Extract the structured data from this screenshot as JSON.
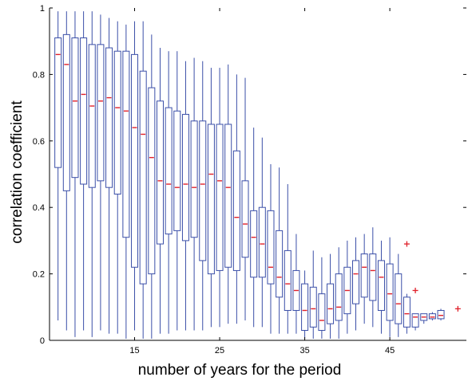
{
  "chart_data": {
    "type": "boxplot",
    "xlabel": "number of years for the period",
    "ylabel": "correlation coefficient",
    "xlim": [
      5,
      54
    ],
    "ylim": [
      0,
      1
    ],
    "x_ticks": [
      15,
      25,
      35,
      45
    ],
    "y_ticks": [
      0,
      0.2,
      0.4,
      0.6,
      0.8,
      1
    ],
    "y_tick_labels": [
      "0",
      "0.2",
      "0.4",
      "0.6",
      "0.8",
      "1"
    ],
    "grid": false,
    "colors": {
      "box": "#3b4fa8",
      "median": "#e0202a",
      "outlier": "#e0202a",
      "axis": "#000000"
    },
    "boxes": [
      {
        "x": 6,
        "whisker_low": 0.06,
        "q1": 0.52,
        "median": 0.86,
        "q3": 0.91,
        "whisker_high": 0.99
      },
      {
        "x": 7,
        "whisker_low": 0.03,
        "q1": 0.45,
        "median": 0.83,
        "q3": 0.92,
        "whisker_high": 0.99
      },
      {
        "x": 8,
        "whisker_low": 0.01,
        "q1": 0.49,
        "median": 0.72,
        "q3": 0.91,
        "whisker_high": 0.99
      },
      {
        "x": 9,
        "whisker_low": 0.03,
        "q1": 0.47,
        "median": 0.74,
        "q3": 0.91,
        "whisker_high": 0.99
      },
      {
        "x": 10,
        "whisker_low": 0.01,
        "q1": 0.46,
        "median": 0.705,
        "q3": 0.89,
        "whisker_high": 0.99
      },
      {
        "x": 11,
        "whisker_low": 0.03,
        "q1": 0.48,
        "median": 0.72,
        "q3": 0.89,
        "whisker_high": 0.98
      },
      {
        "x": 12,
        "whisker_low": 0.02,
        "q1": 0.46,
        "median": 0.73,
        "q3": 0.88,
        "whisker_high": 0.97
      },
      {
        "x": 13,
        "whisker_low": 0.02,
        "q1": 0.44,
        "median": 0.7,
        "q3": 0.87,
        "whisker_high": 0.96
      },
      {
        "x": 14,
        "whisker_low": 0.005,
        "q1": 0.31,
        "median": 0.69,
        "q3": 0.87,
        "whisker_high": 0.95
      },
      {
        "x": 15,
        "whisker_low": 0.03,
        "q1": 0.22,
        "median": 0.64,
        "q3": 0.86,
        "whisker_high": 0.96
      },
      {
        "x": 16,
        "whisker_low": 0.005,
        "q1": 0.17,
        "median": 0.62,
        "q3": 0.81,
        "whisker_high": 0.96
      },
      {
        "x": 17,
        "whisker_low": 0.005,
        "q1": 0.2,
        "median": 0.55,
        "q3": 0.76,
        "whisker_high": 0.92
      },
      {
        "x": 18,
        "whisker_low": 0.02,
        "q1": 0.29,
        "median": 0.48,
        "q3": 0.72,
        "whisker_high": 0.88
      },
      {
        "x": 19,
        "whisker_low": 0.02,
        "q1": 0.32,
        "median": 0.47,
        "q3": 0.7,
        "whisker_high": 0.87
      },
      {
        "x": 20,
        "whisker_low": 0.03,
        "q1": 0.33,
        "median": 0.46,
        "q3": 0.69,
        "whisker_high": 0.87
      },
      {
        "x": 21,
        "whisker_low": 0.03,
        "q1": 0.3,
        "median": 0.47,
        "q3": 0.68,
        "whisker_high": 0.84
      },
      {
        "x": 22,
        "whisker_low": 0.03,
        "q1": 0.31,
        "median": 0.46,
        "q3": 0.66,
        "whisker_high": 0.85
      },
      {
        "x": 23,
        "whisker_low": 0.03,
        "q1": 0.24,
        "median": 0.47,
        "q3": 0.66,
        "whisker_high": 0.84
      },
      {
        "x": 24,
        "whisker_low": 0.04,
        "q1": 0.2,
        "median": 0.5,
        "q3": 0.65,
        "whisker_high": 0.82
      },
      {
        "x": 25,
        "whisker_low": 0.04,
        "q1": 0.21,
        "median": 0.48,
        "q3": 0.65,
        "whisker_high": 0.82
      },
      {
        "x": 26,
        "whisker_low": 0.05,
        "q1": 0.22,
        "median": 0.46,
        "q3": 0.65,
        "whisker_high": 0.83
      },
      {
        "x": 27,
        "whisker_low": 0.05,
        "q1": 0.21,
        "median": 0.37,
        "q3": 0.57,
        "whisker_high": 0.8
      },
      {
        "x": 28,
        "whisker_low": 0.06,
        "q1": 0.25,
        "median": 0.35,
        "q3": 0.48,
        "whisker_high": 0.79
      },
      {
        "x": 29,
        "whisker_low": 0.04,
        "q1": 0.19,
        "median": 0.31,
        "q3": 0.39,
        "whisker_high": 0.64
      },
      {
        "x": 30,
        "whisker_low": 0.04,
        "q1": 0.19,
        "median": 0.29,
        "q3": 0.4,
        "whisker_high": 0.61
      },
      {
        "x": 31,
        "whisker_low": 0.02,
        "q1": 0.17,
        "median": 0.22,
        "q3": 0.39,
        "whisker_high": 0.53
      },
      {
        "x": 32,
        "whisker_low": 0.02,
        "q1": 0.13,
        "median": 0.19,
        "q3": 0.33,
        "whisker_high": 0.52
      },
      {
        "x": 33,
        "whisker_low": 0.02,
        "q1": 0.09,
        "median": 0.17,
        "q3": 0.27,
        "whisker_high": 0.47
      },
      {
        "x": 34,
        "whisker_low": 0.02,
        "q1": 0.09,
        "median": 0.15,
        "q3": 0.21,
        "whisker_high": 0.32
      },
      {
        "x": 35,
        "whisker_low": 0.005,
        "q1": 0.03,
        "median": 0.09,
        "q3": 0.17,
        "whisker_high": 0.21
      },
      {
        "x": 36,
        "whisker_low": 0.005,
        "q1": 0.04,
        "median": 0.095,
        "q3": 0.16,
        "whisker_high": 0.27
      },
      {
        "x": 37,
        "whisker_low": 0.005,
        "q1": 0.03,
        "median": 0.06,
        "q3": 0.14,
        "whisker_high": 0.25
      },
      {
        "x": 38,
        "whisker_low": 0.005,
        "q1": 0.05,
        "median": 0.095,
        "q3": 0.17,
        "whisker_high": 0.26
      },
      {
        "x": 39,
        "whisker_low": 0.005,
        "q1": 0.06,
        "median": 0.1,
        "q3": 0.2,
        "whisker_high": 0.28
      },
      {
        "x": 40,
        "whisker_low": 0.02,
        "q1": 0.08,
        "median": 0.15,
        "q3": 0.22,
        "whisker_high": 0.3
      },
      {
        "x": 41,
        "whisker_low": 0.03,
        "q1": 0.11,
        "median": 0.2,
        "q3": 0.24,
        "whisker_high": 0.31
      },
      {
        "x": 42,
        "whisker_low": 0.05,
        "q1": 0.13,
        "median": 0.22,
        "q3": 0.26,
        "whisker_high": 0.32
      },
      {
        "x": 43,
        "whisker_low": 0.04,
        "q1": 0.12,
        "median": 0.21,
        "q3": 0.26,
        "whisker_high": 0.34
      },
      {
        "x": 44,
        "whisker_low": 0.02,
        "q1": 0.09,
        "median": 0.19,
        "q3": 0.24,
        "whisker_high": 0.3
      },
      {
        "x": 45,
        "whisker_low": 0.01,
        "q1": 0.06,
        "median": 0.14,
        "q3": 0.23,
        "whisker_high": 0.31
      },
      {
        "x": 46,
        "whisker_low": 0.01,
        "q1": 0.05,
        "median": 0.11,
        "q3": 0.2,
        "whisker_high": 0.26
      },
      {
        "x": 47,
        "whisker_low": 0.02,
        "q1": 0.04,
        "median": 0.08,
        "q3": 0.13,
        "whisker_high": 0.14
      },
      {
        "x": 48,
        "whisker_low": 0.03,
        "q1": 0.04,
        "median": 0.07,
        "q3": 0.08,
        "whisker_high": 0.08
      },
      {
        "x": 49,
        "whisker_low": 0.05,
        "q1": 0.06,
        "median": 0.07,
        "q3": 0.08,
        "whisker_high": 0.08
      },
      {
        "x": 50,
        "whisker_low": 0.06,
        "q1": 0.065,
        "median": 0.07,
        "q3": 0.08,
        "whisker_high": 0.085
      },
      {
        "x": 51,
        "whisker_low": 0.06,
        "q1": 0.065,
        "median": 0.075,
        "q3": 0.09,
        "whisker_high": 0.095
      }
    ],
    "outliers": [
      {
        "x": 47,
        "y": 0.29
      },
      {
        "x": 48,
        "y": 0.15
      },
      {
        "x": 53,
        "y": 0.095
      }
    ]
  }
}
